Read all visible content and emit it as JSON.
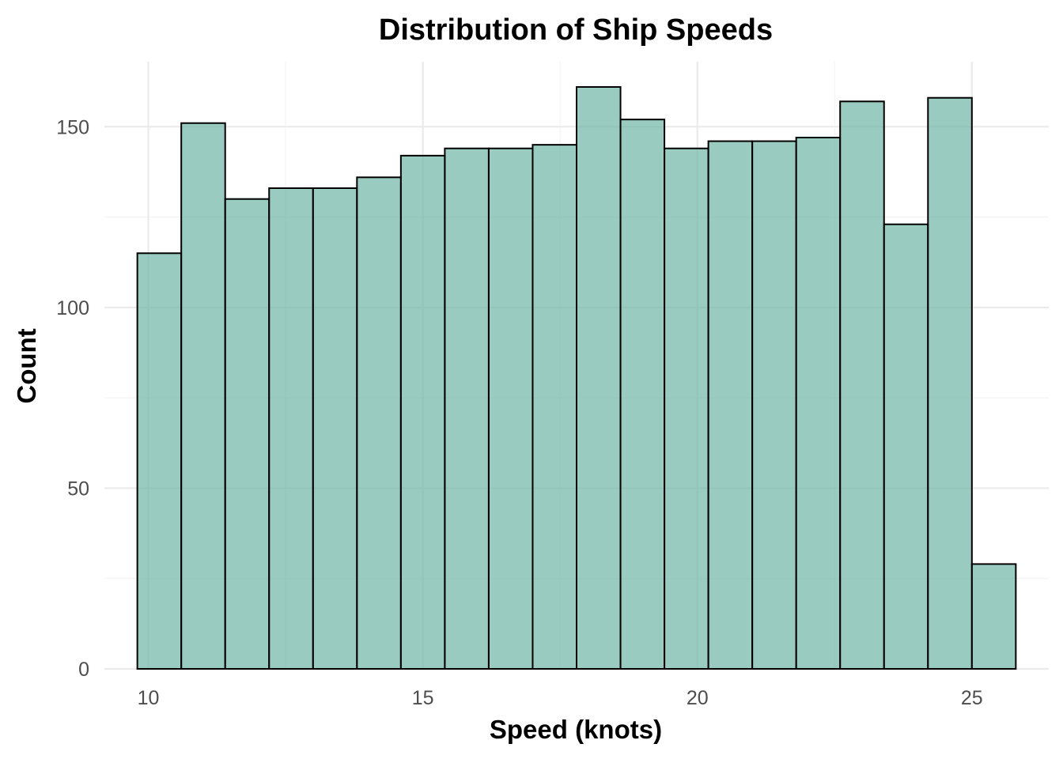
{
  "chart_data": {
    "type": "bar",
    "title": "Distribution of Ship Speeds",
    "xlabel": "Speed (knots)",
    "ylabel": "Count",
    "bin_edges": [
      9.8,
      10.6,
      11.4,
      12.2,
      13.0,
      13.8,
      14.6,
      15.4,
      16.2,
      17.0,
      17.8,
      18.6,
      19.4,
      20.2,
      21.0,
      21.8,
      22.6,
      23.4,
      24.2,
      25.0,
      25.8
    ],
    "values": [
      115,
      151,
      130,
      133,
      133,
      136,
      142,
      144,
      144,
      145,
      161,
      152,
      144,
      146,
      146,
      147,
      157,
      123,
      158,
      29
    ],
    "xlim": [
      9.2,
      26.4
    ],
    "ylim": [
      0,
      168
    ],
    "x_ticks": [
      10,
      15,
      20,
      25
    ],
    "x_tick_labels": [
      "10",
      "15",
      "20",
      "25"
    ],
    "y_ticks": [
      0,
      50,
      100,
      150
    ],
    "y_tick_labels": [
      "0",
      "50",
      "100",
      "150"
    ],
    "grid": true,
    "bar_color": "#69b3a2",
    "bar_outline": "#000000"
  }
}
